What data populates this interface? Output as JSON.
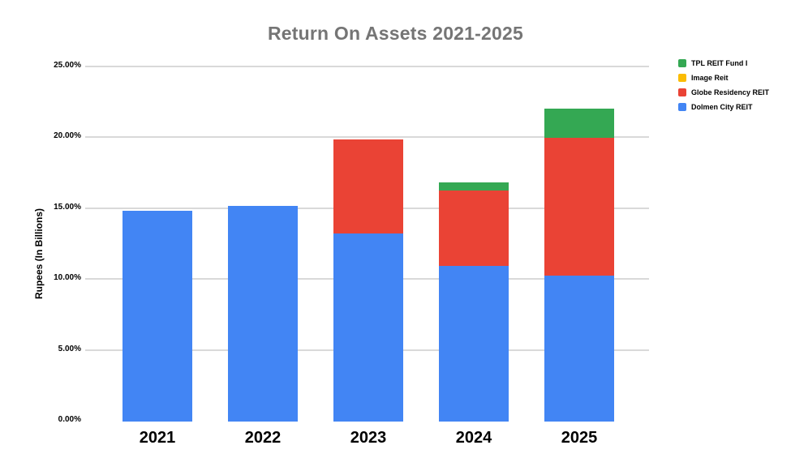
{
  "chart_data": {
    "type": "bar",
    "variant": "stacked",
    "title": "Return On Assets 2021-2025",
    "title_color": "#757575",
    "xlabel": "",
    "ylabel": "Rupees (In Billions)",
    "categories": [
      "2021",
      "2022",
      "2023",
      "2024",
      "2025"
    ],
    "series": [
      {
        "name": "Dolmen City REIT",
        "color": "#4285F4",
        "values": [
          14.85,
          15.2,
          13.25,
          11.0,
          10.3
        ]
      },
      {
        "name": "Globe Residency REIT",
        "color": "#EA4335",
        "values": [
          0,
          0,
          6.65,
          5.3,
          9.7
        ]
      },
      {
        "name": "Image Reit",
        "color": "#FBBC04",
        "values": [
          0,
          0,
          0,
          0,
          0
        ]
      },
      {
        "name": "TPL REIT Fund I",
        "color": "#34A853",
        "values": [
          0,
          0,
          0,
          0.6,
          2.1
        ]
      }
    ],
    "totals": [
      14.85,
      15.2,
      19.9,
      16.9,
      22.1
    ],
    "y_ticks": [
      "0.00%",
      "5.00%",
      "10.00%",
      "15.00%",
      "20.00%",
      "25.00%"
    ],
    "ylim": [
      0,
      25
    ],
    "grid": true,
    "gridline_color": "#d9d9d9",
    "axis_line_color": "#333333",
    "legend_position": "top-right",
    "legend_order": [
      "TPL REIT Fund I",
      "Image Reit",
      "Globe Residency REIT",
      "Dolmen City REIT"
    ]
  }
}
